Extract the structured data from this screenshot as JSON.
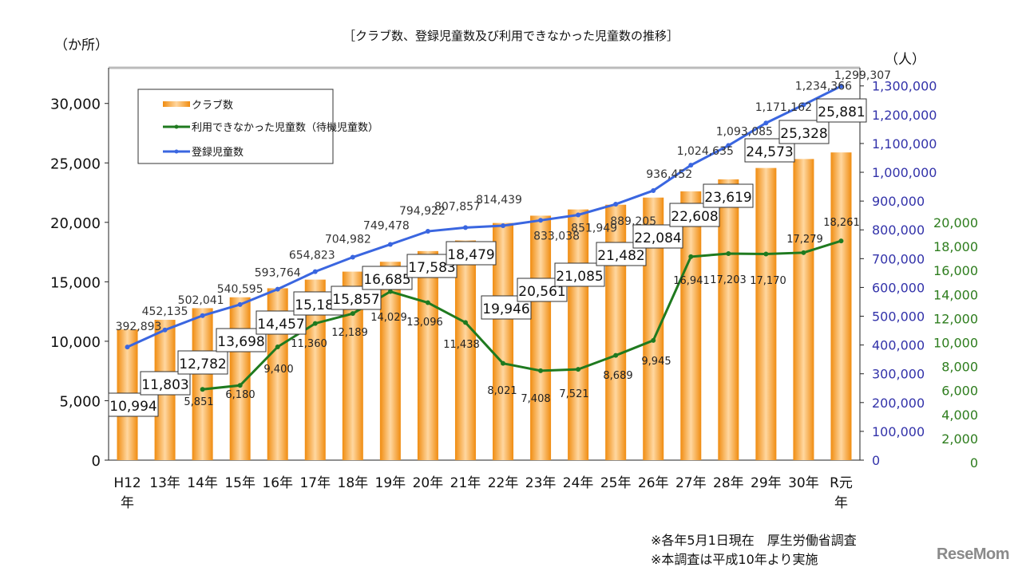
{
  "chart_data": {
    "type": "bar+line",
    "title": "［クラブ数、登録児童数及び利用できなかった児童数の推移］",
    "left_unit": "（か所）",
    "right_unit": "（人）",
    "categories": [
      "H12年",
      "13年",
      "14年",
      "15年",
      "16年",
      "17年",
      "18年",
      "19年",
      "20年",
      "21年",
      "22年",
      "23年",
      "24年",
      "25年",
      "26年",
      "27年",
      "28年",
      "29年",
      "30年",
      "R元年"
    ],
    "category_labels": [
      [
        "H12",
        "年"
      ],
      [
        "13年"
      ],
      [
        "14年"
      ],
      [
        "15年"
      ],
      [
        "16年"
      ],
      [
        "17年"
      ],
      [
        "18年"
      ],
      [
        "19年"
      ],
      [
        "20年"
      ],
      [
        "21年"
      ],
      [
        "22年"
      ],
      [
        "23年"
      ],
      [
        "24年"
      ],
      [
        "25年"
      ],
      [
        "26年"
      ],
      [
        "27年"
      ],
      [
        "28年"
      ],
      [
        "29年"
      ],
      [
        "30年"
      ],
      [
        "R元",
        "年"
      ]
    ],
    "left_axis": {
      "range": [
        0,
        33000
      ],
      "ticks": [
        "0",
        "5,000",
        "10,000",
        "15,000",
        "20,000",
        "25,000",
        "30,000"
      ],
      "tick_values": [
        0,
        5000,
        10000,
        15000,
        20000,
        25000,
        30000
      ]
    },
    "right_axis_blue": {
      "range": [
        0,
        1363000
      ],
      "ticks": [
        "0",
        "100,000",
        "200,000",
        "300,000",
        "400,000",
        "500,000",
        "600,000",
        "700,000",
        "800,000",
        "900,000",
        "1,000,000",
        "1,100,000",
        "1,200,000",
        "1,300,000"
      ],
      "tick_values": [
        0,
        100000,
        200000,
        300000,
        400000,
        500000,
        600000,
        700000,
        800000,
        900000,
        1000000,
        1100000,
        1200000,
        1300000
      ],
      "color": "#3333aa"
    },
    "right_axis_green": {
      "range": [
        0,
        20000
      ],
      "ticks": [
        "0",
        "2,000",
        "4,000",
        "6,000",
        "8,000",
        "10,000",
        "12,000",
        "14,000",
        "16,000",
        "18,000",
        "20,000"
      ],
      "tick_values": [
        0,
        2000,
        4000,
        6000,
        8000,
        10000,
        12000,
        14000,
        16000,
        18000,
        20000
      ],
      "color": "#2e7d1e"
    },
    "series": [
      {
        "name": "クラブ数",
        "type": "bar",
        "axis": "left",
        "color": "#f39a1e",
        "values": [
          10994,
          11803,
          12782,
          13698,
          14457,
          15184,
          15857,
          16685,
          17583,
          18479,
          19946,
          20561,
          21085,
          21482,
          22084,
          22608,
          23619,
          24573,
          25328,
          25881
        ],
        "labels": [
          "10,994",
          "11,803",
          "12,782",
          "13,698",
          "14,457",
          "15,184",
          "15,857",
          "16,685",
          "17,583",
          "18,479",
          "19,946",
          "20,561",
          "21,085",
          "21,482",
          "22,084",
          "22,608",
          "23,619",
          "24,573",
          "25,328",
          "25,881"
        ]
      },
      {
        "name": "利用できなかった児童数（待機児童数）",
        "type": "line",
        "axis": "right_green",
        "color": "#1f7a1f",
        "values": [
          null,
          null,
          5851,
          6180,
          9400,
          11360,
          12189,
          14029,
          13096,
          11438,
          8021,
          7408,
          7521,
          8689,
          9945,
          16941,
          17203,
          17170,
          17279,
          18261
        ],
        "labels": [
          null,
          null,
          "5,851",
          "6,180",
          "9,400",
          "11,360",
          "12,189",
          "14,029",
          "13,096",
          "11,438",
          "8,021",
          "7,408",
          "7,521",
          "8,689",
          "9,945",
          "16,941",
          "17,203",
          "17,170",
          "17,279",
          "18,261"
        ]
      },
      {
        "name": "登録児童数",
        "type": "line",
        "axis": "right_blue",
        "color": "#3a66e0",
        "values": [
          392893,
          452135,
          502041,
          540595,
          593764,
          654823,
          704982,
          749478,
          794922,
          807857,
          814439,
          833038,
          851949,
          889205,
          936452,
          1024635,
          1093085,
          1171162,
          1234366,
          1299307
        ],
        "labels": [
          "392,893",
          "452,135",
          "502,041",
          "540,595",
          "593,764",
          "654,823",
          "704,982",
          "749,478",
          "794,922",
          "807,857",
          "814,439",
          "833,038",
          "851,949",
          "889,205",
          "936,452",
          "1,024,635",
          "1,093,085",
          "1,171,162",
          "1,234,366",
          "1,299,307"
        ]
      }
    ],
    "legend_placement": "top-left",
    "grid": false
  },
  "notes": [
    "※各年5月1日現在　厚生労働省調査",
    "※本調査は平成10年より実施"
  ],
  "logo": "ReseMom"
}
